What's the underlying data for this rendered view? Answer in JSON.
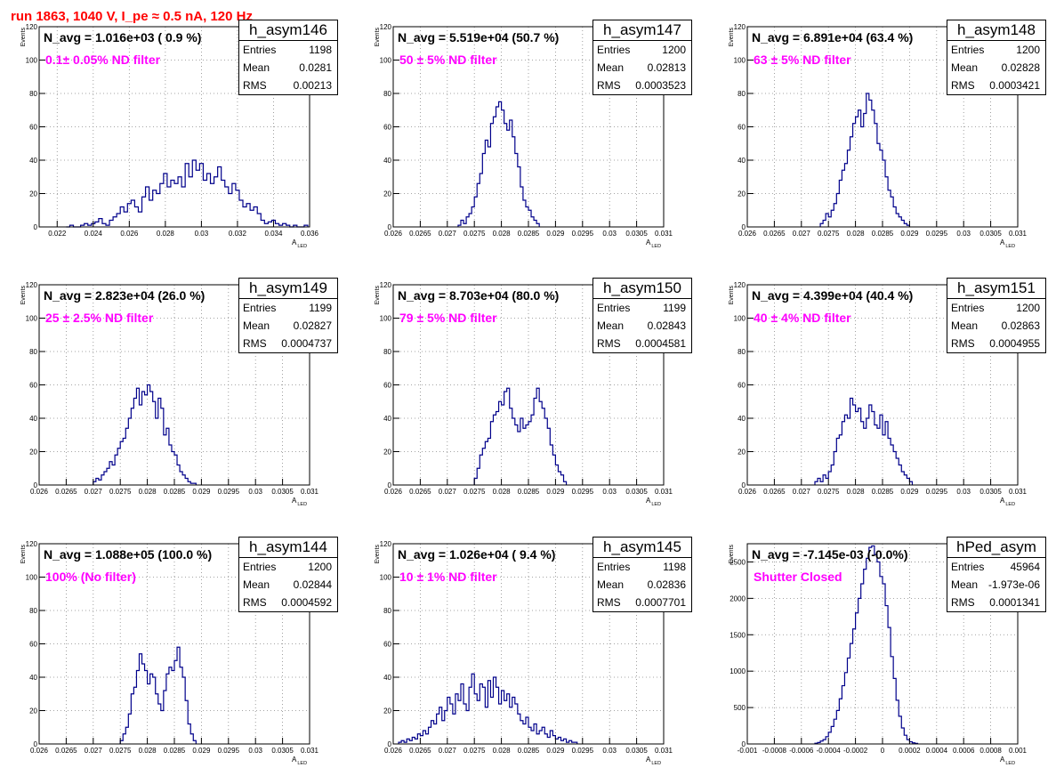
{
  "page_title": "run 1863,  1040 V, I_pe ≈ 0.5 nA, 120 Hz",
  "axis": {
    "ylabel": "Events",
    "xlabel_main": "A",
    "xlabel_sub": "LED"
  },
  "colors": {
    "histogram_line": "#00008b",
    "title_red": "#ff0000",
    "filter_magenta": "#ff00ff"
  },
  "chart_data": [
    {
      "type": "histogram",
      "hist_name": "h_asym146",
      "n_avg_text": "N_avg = 1.016e+03 ( 0.9 %)",
      "filter_text": "0.1± 0.05% ND filter",
      "stats": {
        "entries": "1198",
        "mean": "0.0281",
        "rms": "0.00213"
      },
      "xlim": [
        0.021,
        0.036
      ],
      "ylim": [
        0,
        120
      ],
      "xticks": [
        0.022,
        0.024,
        0.026,
        0.028,
        0.03,
        0.032,
        0.034,
        0.036
      ],
      "xtick_labels": [
        "0.022",
        "0.024",
        "0.026",
        "0.028",
        "0.03",
        "0.032",
        "0.034",
        "0.036"
      ],
      "yticks": [
        0,
        20,
        40,
        60,
        80,
        100,
        120
      ],
      "ytick_labels": [
        "0",
        "20",
        "40",
        "60",
        "80",
        "100",
        "120"
      ],
      "bins": {
        "x0": 0.0225,
        "width": 0.0002,
        "values": [
          0,
          1,
          0,
          0,
          1,
          2,
          1,
          2,
          3,
          5,
          2,
          1,
          4,
          6,
          8,
          12,
          9,
          14,
          16,
          12,
          9,
          18,
          24,
          16,
          22,
          20,
          26,
          32,
          24,
          28,
          26,
          30,
          24,
          38,
          30,
          40,
          34,
          38,
          28,
          32,
          26,
          30,
          36,
          28,
          24,
          20,
          26,
          22,
          16,
          12,
          14,
          10,
          12,
          8,
          4,
          2,
          3,
          4,
          2,
          1,
          2,
          1,
          0,
          1,
          0,
          0,
          1
        ]
      }
    },
    {
      "type": "histogram",
      "hist_name": "h_asym147",
      "n_avg_text": "N_avg = 5.519e+04 (50.7 %)",
      "filter_text": " 50 ± 5% ND filter",
      "stats": {
        "entries": "1200",
        "mean": "0.02813",
        "rms": "0.0003523"
      },
      "xlim": [
        0.026,
        0.031
      ],
      "ylim": [
        0,
        120
      ],
      "xticks": [
        0.026,
        0.0265,
        0.027,
        0.0275,
        0.028,
        0.0285,
        0.029,
        0.0295,
        0.03,
        0.0305,
        0.031
      ],
      "xtick_labels": [
        "0.026",
        "0.0265",
        "0.027",
        "0.0275",
        "0.028",
        "0.0285",
        "0.029",
        "0.0295",
        "0.03",
        "0.0305",
        "0.031"
      ],
      "yticks": [
        0,
        20,
        40,
        60,
        80,
        100,
        120
      ],
      "ytick_labels": [
        "0",
        "20",
        "40",
        "60",
        "80",
        "100",
        "120"
      ],
      "bins": {
        "x0": 0.0272,
        "width": 5e-05,
        "values": [
          1,
          4,
          2,
          6,
          8,
          12,
          18,
          26,
          32,
          44,
          52,
          48,
          62,
          66,
          72,
          75,
          70,
          62,
          58,
          64,
          54,
          44,
          36,
          24,
          16,
          12,
          10,
          6,
          4,
          2
        ]
      }
    },
    {
      "type": "histogram",
      "hist_name": "h_asym148",
      "n_avg_text": "N_avg = 6.891e+04 (63.4 %)",
      "filter_text": " 63 ± 5% ND filter",
      "stats": {
        "entries": "1200",
        "mean": "0.02828",
        "rms": "0.0003421"
      },
      "xlim": [
        0.026,
        0.031
      ],
      "ylim": [
        0,
        120
      ],
      "xticks": [
        0.026,
        0.0265,
        0.027,
        0.0275,
        0.028,
        0.0285,
        0.029,
        0.0295,
        0.03,
        0.0305,
        0.031
      ],
      "xtick_labels": [
        "0.026",
        "0.0265",
        "0.027",
        "0.0275",
        "0.028",
        "0.0285",
        "0.029",
        "0.0295",
        "0.03",
        "0.0305",
        "0.031"
      ],
      "yticks": [
        0,
        20,
        40,
        60,
        80,
        100,
        120
      ],
      "ytick_labels": [
        "0",
        "20",
        "40",
        "60",
        "80",
        "100",
        "120"
      ],
      "bins": {
        "x0": 0.02735,
        "width": 5e-05,
        "values": [
          2,
          4,
          8,
          6,
          10,
          14,
          20,
          28,
          34,
          38,
          46,
          54,
          62,
          66,
          70,
          60,
          68,
          80,
          76,
          70,
          62,
          50,
          46,
          40,
          30,
          22,
          18,
          12,
          8,
          6,
          4,
          2,
          1
        ]
      }
    },
    {
      "type": "histogram",
      "hist_name": "h_asym149",
      "n_avg_text": "N_avg = 2.823e+04 (26.0 %)",
      "filter_text": " 25 ± 2.5% ND filter",
      "stats": {
        "entries": "1199",
        "mean": "0.02827",
        "rms": "0.0004737"
      },
      "xlim": [
        0.026,
        0.031
      ],
      "ylim": [
        0,
        120
      ],
      "xticks": [
        0.026,
        0.0265,
        0.027,
        0.0275,
        0.028,
        0.0285,
        0.029,
        0.0295,
        0.03,
        0.0305,
        0.031
      ],
      "xtick_labels": [
        "0.026",
        "0.0265",
        "0.027",
        "0.0275",
        "0.028",
        "0.0285",
        "0.029",
        "0.0295",
        "0.03",
        "0.0305",
        "0.031"
      ],
      "yticks": [
        0,
        20,
        40,
        60,
        80,
        100,
        120
      ],
      "ytick_labels": [
        "0",
        "20",
        "40",
        "60",
        "80",
        "100",
        "120"
      ],
      "bins": {
        "x0": 0.027,
        "width": 5e-05,
        "values": [
          2,
          4,
          3,
          6,
          8,
          10,
          14,
          12,
          18,
          22,
          26,
          28,
          34,
          40,
          46,
          52,
          58,
          48,
          56,
          54,
          60,
          56,
          50,
          40,
          52,
          46,
          30,
          34,
          24,
          20,
          18,
          12,
          8,
          6,
          4,
          2,
          1,
          1
        ]
      }
    },
    {
      "type": "histogram",
      "hist_name": "h_asym150",
      "n_avg_text": "N_avg = 8.703e+04 (80.0 %)",
      "filter_text": " 79 ± 5% ND filter",
      "stats": {
        "entries": "1199",
        "mean": "0.02843",
        "rms": "0.0004581"
      },
      "xlim": [
        0.026,
        0.031
      ],
      "ylim": [
        0,
        120
      ],
      "xticks": [
        0.026,
        0.0265,
        0.027,
        0.0275,
        0.028,
        0.0285,
        0.029,
        0.0295,
        0.03,
        0.0305,
        0.031
      ],
      "xtick_labels": [
        "0.026",
        "0.0265",
        "0.027",
        "0.0275",
        "0.028",
        "0.0285",
        "0.029",
        "0.0295",
        "0.03",
        "0.0305",
        "0.031"
      ],
      "yticks": [
        0,
        20,
        40,
        60,
        80,
        100,
        120
      ],
      "ytick_labels": [
        "0",
        "20",
        "40",
        "60",
        "80",
        "100",
        "120"
      ],
      "bins": {
        "x0": 0.0275,
        "width": 5e-05,
        "values": [
          4,
          10,
          18,
          22,
          26,
          28,
          38,
          42,
          44,
          50,
          48,
          56,
          58,
          46,
          40,
          36,
          32,
          40,
          34,
          36,
          38,
          42,
          52,
          58,
          50,
          46,
          40,
          34,
          24,
          18,
          12,
          8,
          6,
          2
        ]
      }
    },
    {
      "type": "histogram",
      "hist_name": "h_asym151",
      "n_avg_text": "N_avg = 4.399e+04 (40.4 %)",
      "filter_text": " 40 ± 4% ND filter",
      "stats": {
        "entries": "1200",
        "mean": "0.02863",
        "rms": "0.0004955"
      },
      "xlim": [
        0.026,
        0.031
      ],
      "ylim": [
        0,
        120
      ],
      "xticks": [
        0.026,
        0.0265,
        0.027,
        0.0275,
        0.028,
        0.0285,
        0.029,
        0.0295,
        0.03,
        0.0305,
        0.031
      ],
      "xtick_labels": [
        "0.026",
        "0.0265",
        "0.027",
        "0.0275",
        "0.028",
        "0.0285",
        "0.029",
        "0.0295",
        "0.03",
        "0.0305",
        "0.031"
      ],
      "yticks": [
        0,
        20,
        40,
        60,
        80,
        100,
        120
      ],
      "ytick_labels": [
        "0",
        "20",
        "40",
        "60",
        "80",
        "100",
        "120"
      ],
      "bins": {
        "x0": 0.02725,
        "width": 5e-05,
        "values": [
          2,
          4,
          2,
          6,
          4,
          8,
          12,
          20,
          28,
          30,
          38,
          42,
          40,
          52,
          48,
          44,
          46,
          38,
          34,
          40,
          48,
          44,
          36,
          34,
          42,
          30,
          38,
          28,
          24,
          20,
          16,
          12,
          8,
          6,
          4,
          2
        ]
      }
    },
    {
      "type": "histogram",
      "hist_name": "h_asym144",
      "n_avg_text": "N_avg = 1.088e+05 (100.0 %)",
      "filter_text": " 100% (No filter)",
      "stats": {
        "entries": "1200",
        "mean": "0.02844",
        "rms": "0.0004592"
      },
      "xlim": [
        0.026,
        0.031
      ],
      "ylim": [
        0,
        120
      ],
      "xticks": [
        0.026,
        0.0265,
        0.027,
        0.0275,
        0.028,
        0.0285,
        0.029,
        0.0295,
        0.03,
        0.0305,
        0.031
      ],
      "xtick_labels": [
        "0.026",
        "0.0265",
        "0.027",
        "0.0275",
        "0.028",
        "0.0285",
        "0.029",
        "0.0295",
        "0.03",
        "0.0305",
        "0.031"
      ],
      "yticks": [
        0,
        20,
        40,
        60,
        80,
        100,
        120
      ],
      "ytick_labels": [
        "0",
        "20",
        "40",
        "60",
        "80",
        "100",
        "120"
      ],
      "bins": {
        "x0": 0.0275,
        "width": 5e-05,
        "values": [
          2,
          6,
          10,
          18,
          30,
          34,
          44,
          54,
          48,
          44,
          36,
          42,
          40,
          30,
          24,
          20,
          32,
          42,
          46,
          44,
          50,
          58,
          46,
          40,
          26,
          12,
          6,
          2
        ]
      }
    },
    {
      "type": "histogram",
      "hist_name": "h_asym145",
      "n_avg_text": "N_avg = 1.026e+04 ( 9.4 %)",
      "filter_text": " 10 ± 1% ND filter",
      "stats": {
        "entries": "1198",
        "mean": "0.02836",
        "rms": "0.0007701"
      },
      "xlim": [
        0.026,
        0.031
      ],
      "ylim": [
        0,
        120
      ],
      "xticks": [
        0.026,
        0.0265,
        0.027,
        0.0275,
        0.028,
        0.0285,
        0.029,
        0.0295,
        0.03,
        0.0305,
        0.031
      ],
      "xtick_labels": [
        "0.026",
        "0.0265",
        "0.027",
        "0.0275",
        "0.028",
        "0.0285",
        "0.029",
        "0.0295",
        "0.03",
        "0.0305",
        "0.031"
      ],
      "yticks": [
        0,
        20,
        40,
        60,
        80,
        100,
        120
      ],
      "ytick_labels": [
        "0",
        "20",
        "40",
        "60",
        "80",
        "100",
        "120"
      ],
      "bins": {
        "x0": 0.0261,
        "width": 5e-05,
        "values": [
          1,
          2,
          1,
          3,
          2,
          4,
          3,
          6,
          5,
          8,
          6,
          10,
          14,
          12,
          18,
          22,
          14,
          20,
          28,
          24,
          18,
          30,
          26,
          36,
          24,
          20,
          34,
          42,
          30,
          26,
          36,
          34,
          22,
          38,
          28,
          40,
          34,
          24,
          32,
          26,
          30,
          22,
          28,
          24,
          18,
          14,
          12,
          16,
          10,
          8,
          12,
          6,
          8,
          10,
          6,
          4,
          8,
          5,
          3,
          4,
          2,
          3,
          1,
          2,
          1,
          1
        ]
      }
    },
    {
      "type": "histogram",
      "hist_name": "hPed_asym",
      "n_avg_text": "N_avg = -7.145e-03 (-0.0%)",
      "filter_text": "Shutter Closed",
      "stats": {
        "entries": "45964",
        "mean": "-1.973e-06",
        "rms": "0.0001341"
      },
      "xlim": [
        -0.001,
        0.001
      ],
      "ylim": [
        0,
        2750
      ],
      "xticks": [
        -0.001,
        -0.0008,
        -0.0006,
        -0.0004,
        -0.0002,
        0,
        0.0002,
        0.0004,
        0.0006,
        0.0008,
        0.001
      ],
      "xtick_labels": [
        "-0.001",
        "-0.0008",
        "-0.0006",
        "-0.0004",
        "-0.0002",
        "0",
        "0.0002",
        "0.0004",
        "0.0006",
        "0.0008",
        "0.001"
      ],
      "yticks": [
        0,
        500,
        1000,
        1500,
        2000,
        2500
      ],
      "ytick_labels": [
        "0",
        "500",
        "1000",
        "1500",
        "2000",
        "2500"
      ],
      "bins": {
        "x0": -0.0005,
        "width": 2e-05,
        "values": [
          10,
          20,
          40,
          60,
          100,
          160,
          240,
          340,
          460,
          620,
          800,
          980,
          1180,
          1380,
          1580,
          1800,
          2000,
          2200,
          2400,
          2550,
          2700,
          2720,
          2600,
          2500,
          2300,
          2200,
          1900,
          1600,
          1200,
          900,
          600,
          380,
          220,
          120,
          60,
          30,
          15,
          8
        ]
      }
    }
  ]
}
